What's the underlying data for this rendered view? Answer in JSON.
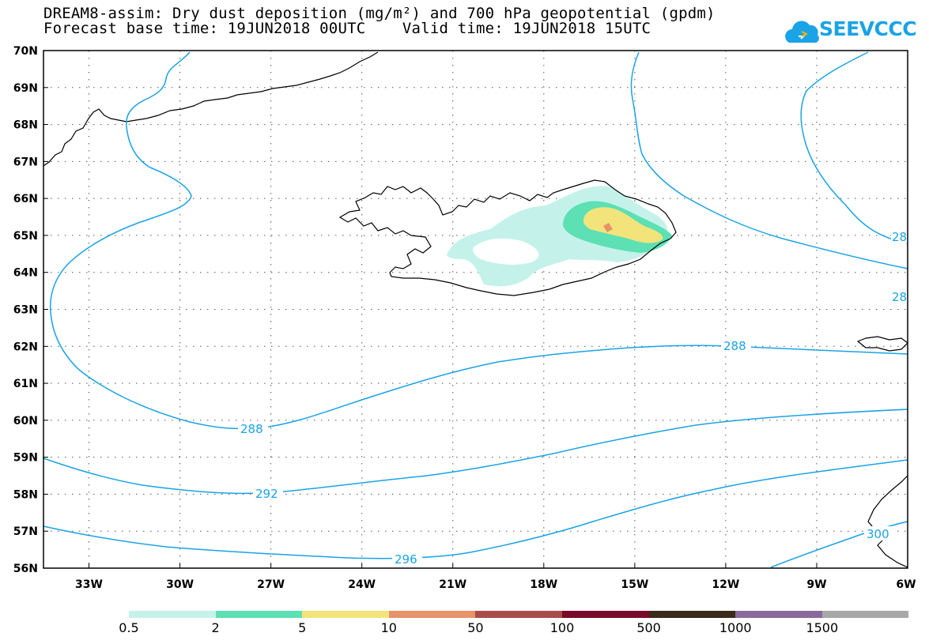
{
  "header": {
    "line1": "DREAM8-assim: Dry dust deposition (mg/m²) and 700 hPa geopotential (gpdm)",
    "line2": "Forecast base time: 19JUN2018 00UTC    Valid time: 19JUN2018 15UTC"
  },
  "logo": {
    "text": "SEEVCCC",
    "icon": "cloud-icon",
    "color": "#1aa3e6"
  },
  "map": {
    "y_axis_labels": [
      "70N",
      "69N",
      "68N",
      "67N",
      "66N",
      "65N",
      "64N",
      "63N",
      "62N",
      "61N",
      "60N",
      "59N",
      "58N",
      "57N",
      "56N"
    ],
    "x_axis_labels": [
      "33W",
      "30W",
      "27W",
      "24W",
      "21W",
      "18W",
      "15W",
      "12W",
      "9W",
      "6W"
    ],
    "contour_labels": [
      {
        "text": "288"
      },
      {
        "text": "288"
      },
      {
        "text": "292"
      },
      {
        "text": "296"
      },
      {
        "text": "300"
      },
      {
        "text": "28"
      },
      {
        "text": "28"
      }
    ],
    "contour_color": "#1aa3e6",
    "grid": "dotted"
  },
  "legend": {
    "colors": [
      "#c4f2ea",
      "#5ce0b4",
      "#f2e47a",
      "#e8926a",
      "#a84e4a",
      "#7a0a2a",
      "#3a2a1a",
      "#8a6a9a",
      "#a8a8a8"
    ],
    "labels": [
      "0.5",
      "2",
      "5",
      "10",
      "50",
      "100",
      "500",
      "1000",
      "1500"
    ]
  }
}
